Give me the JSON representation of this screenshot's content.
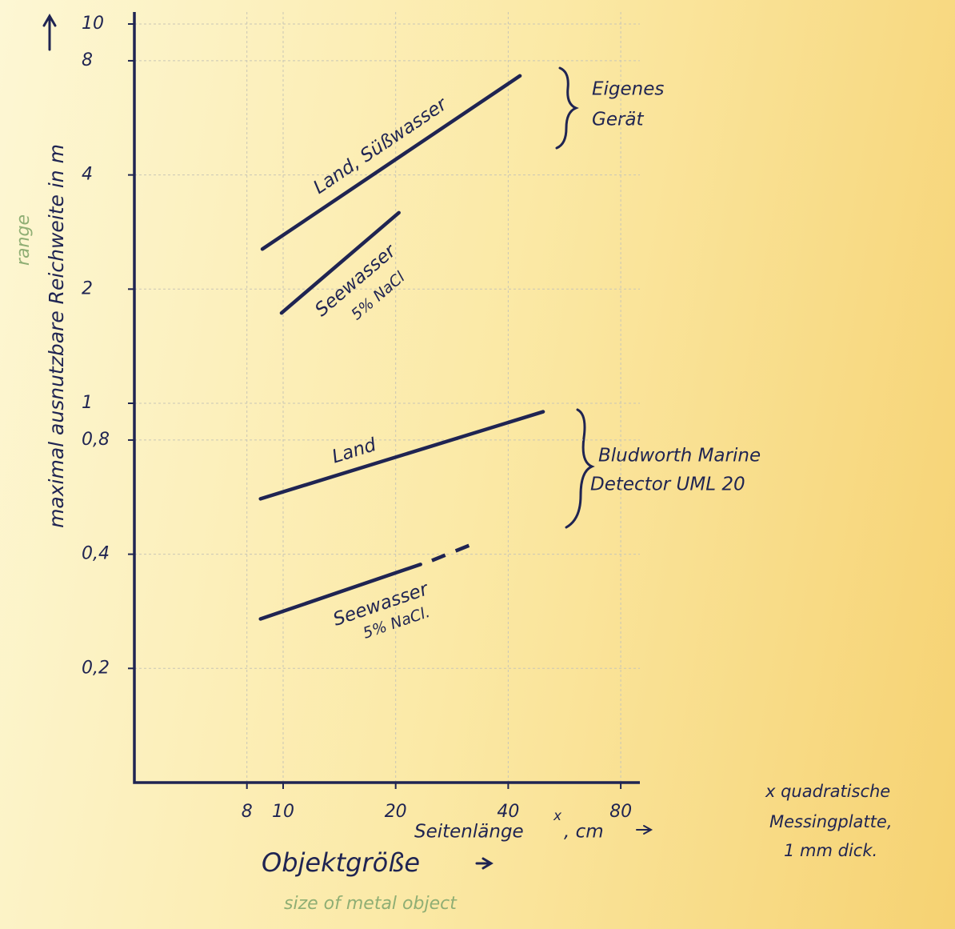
{
  "chart_data": {
    "type": "line",
    "x_scale": "log",
    "y_scale": "log",
    "ylabel": "maximal ausnutzbare Reichweite in m",
    "ylabel_note": "range",
    "xlabel": "Objektgröße",
    "xlabel_note": "size of metal object",
    "x_unit_label": [
      "Seitenlänge",
      "x",
      ", cm"
    ],
    "footnote": [
      "x quadratische",
      "Messingplatte,",
      "1 mm dick."
    ],
    "xlim": [
      4,
      90
    ],
    "ylim": [
      0.1,
      10
    ],
    "xticks": [
      8,
      10,
      20,
      40,
      80
    ],
    "yticks": [
      {
        "value": 0.2,
        "label": "0,2"
      },
      {
        "value": 0.4,
        "label": "0,4"
      },
      {
        "value": 0.8,
        "label": "0,8"
      },
      1,
      2,
      4,
      8,
      10
    ],
    "grid": true,
    "color": "#1f2452",
    "series": [
      {
        "name": "Land, Süßwasser",
        "x": [
          8.8,
          43
        ],
        "values": [
          2.55,
          7.3
        ]
      },
      {
        "name": "Seewasser",
        "note": "5% NaCl",
        "x": [
          9.9,
          20.4
        ],
        "values": [
          1.73,
          3.18
        ]
      },
      {
        "name": "Land",
        "x": [
          8.7,
          49.6
        ],
        "values": [
          0.56,
          0.95
        ]
      },
      {
        "name": "Seewasser",
        "note": "5% NaCl.",
        "x": [
          8.7,
          23.3
        ],
        "values": [
          0.27,
          0.376
        ],
        "dashed_x": [
          25,
          33
        ],
        "dashed_values": [
          0.385,
          0.43
        ]
      }
    ],
    "groups": [
      {
        "label": [
          "Eigenes",
          "Gerät"
        ]
      },
      {
        "label": [
          "Bludworth Marine",
          "Detector UML 20"
        ]
      }
    ]
  }
}
